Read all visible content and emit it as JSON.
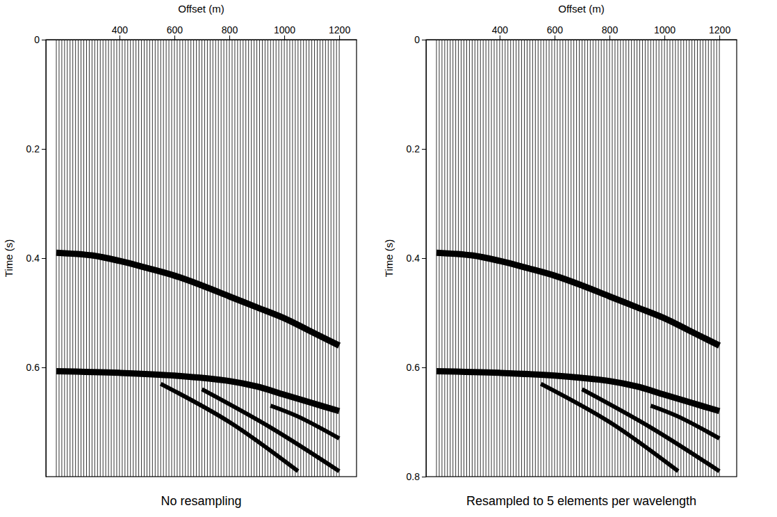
{
  "chart_data": [
    {
      "type": "wiggle",
      "title": "No resampling",
      "x_label": "Offset (m)",
      "y_label": "Time (s)",
      "xlim": [
        132,
        1263
      ],
      "xticks": [
        400,
        600,
        800,
        1000,
        1200
      ],
      "ylim": [
        0,
        0.8
      ],
      "yticks": [
        0,
        0.2,
        0.4,
        0.6
      ],
      "trace_offsets": [
        170,
        180,
        190,
        200,
        210,
        220,
        230,
        240,
        250,
        260,
        270,
        280,
        290,
        300,
        310,
        320,
        330,
        340,
        350,
        360,
        370,
        380,
        390,
        400,
        410,
        420,
        430,
        440,
        450,
        460,
        470,
        480,
        490,
        500,
        510,
        520,
        530,
        540,
        550,
        560,
        570,
        580,
        590,
        600,
        610,
        620,
        630,
        640,
        650,
        660,
        670,
        680,
        690,
        700,
        710,
        720,
        730,
        740,
        750,
        760,
        770,
        780,
        790,
        800,
        810,
        820,
        830,
        840,
        850,
        860,
        870,
        880,
        890,
        900,
        910,
        920,
        930,
        940,
        950,
        960,
        970,
        980,
        990,
        1000,
        1010,
        1020,
        1030,
        1040,
        1050,
        1060,
        1070,
        1080,
        1090,
        1100,
        1110,
        1120,
        1130,
        1140,
        1150,
        1160,
        1170,
        1180,
        1190,
        1200
      ],
      "series": [
        {
          "color": "#000000",
          "x": [
            170,
            300,
            400,
            500,
            600,
            700,
            800,
            900,
            1000,
            1100,
            1200
          ],
          "values": [
            0.39,
            0.395,
            0.405,
            0.418,
            0.432,
            0.45,
            0.47,
            0.49,
            0.51,
            0.535,
            0.56
          ]
        },
        {
          "color": "#000000",
          "x": [
            170,
            400,
            600,
            800,
            900,
            1000,
            1100,
            1200
          ],
          "values": [
            0.607,
            0.61,
            0.615,
            0.625,
            0.635,
            0.65,
            0.665,
            0.68
          ]
        },
        {
          "color": "#000000",
          "x": [
            950,
            1050,
            1200
          ],
          "values": [
            0.67,
            0.69,
            0.73
          ]
        },
        {
          "color": "#000000",
          "x": [
            550,
            800,
            1050
          ],
          "values": [
            0.63,
            0.7,
            0.79
          ]
        },
        {
          "color": "#000000",
          "x": [
            700,
            950,
            1200
          ],
          "values": [
            0.64,
            0.71,
            0.79
          ]
        }
      ]
    },
    {
      "type": "wiggle",
      "title": "Resampled to 5 elements per wavelength",
      "x_label": "Offset (m)",
      "y_label": "Time (s)",
      "xlim": [
        132,
        1263
      ],
      "xticks": [
        400,
        600,
        800,
        1000,
        1200
      ],
      "ylim": [
        0,
        0.8
      ],
      "yticks": [
        0,
        0.2,
        0.4,
        0.6,
        0.8
      ],
      "trace_offsets": [
        170,
        180,
        190,
        200,
        210,
        220,
        230,
        240,
        250,
        260,
        270,
        280,
        290,
        300,
        310,
        320,
        330,
        340,
        350,
        360,
        370,
        380,
        390,
        400,
        410,
        420,
        430,
        440,
        450,
        460,
        470,
        480,
        490,
        500,
        510,
        520,
        530,
        540,
        550,
        560,
        570,
        580,
        590,
        600,
        610,
        620,
        630,
        640,
        650,
        660,
        670,
        680,
        690,
        700,
        710,
        720,
        730,
        740,
        750,
        760,
        770,
        780,
        790,
        800,
        810,
        820,
        830,
        840,
        850,
        860,
        870,
        880,
        890,
        900,
        910,
        920,
        930,
        940,
        950,
        960,
        970,
        980,
        990,
        1000,
        1010,
        1020,
        1030,
        1040,
        1050,
        1060,
        1070,
        1080,
        1090,
        1100,
        1110,
        1120,
        1130,
        1140,
        1150,
        1160,
        1170,
        1180,
        1190,
        1200
      ],
      "series": [
        {
          "color": "#000000",
          "x": [
            170,
            300,
            400,
            500,
            600,
            700,
            800,
            900,
            1000,
            1100,
            1200
          ],
          "values": [
            0.39,
            0.395,
            0.405,
            0.418,
            0.432,
            0.45,
            0.47,
            0.49,
            0.51,
            0.535,
            0.56
          ]
        },
        {
          "color": "#000000",
          "x": [
            170,
            400,
            600,
            800,
            900,
            1000,
            1100,
            1200
          ],
          "values": [
            0.607,
            0.61,
            0.615,
            0.625,
            0.635,
            0.65,
            0.665,
            0.68
          ]
        },
        {
          "color": "#000000",
          "x": [
            950,
            1050,
            1200
          ],
          "values": [
            0.67,
            0.69,
            0.73
          ]
        },
        {
          "color": "#000000",
          "x": [
            550,
            800,
            1050
          ],
          "values": [
            0.63,
            0.7,
            0.79
          ]
        },
        {
          "color": "#000000",
          "x": [
            700,
            950,
            1200
          ],
          "values": [
            0.64,
            0.71,
            0.79
          ]
        }
      ]
    }
  ]
}
